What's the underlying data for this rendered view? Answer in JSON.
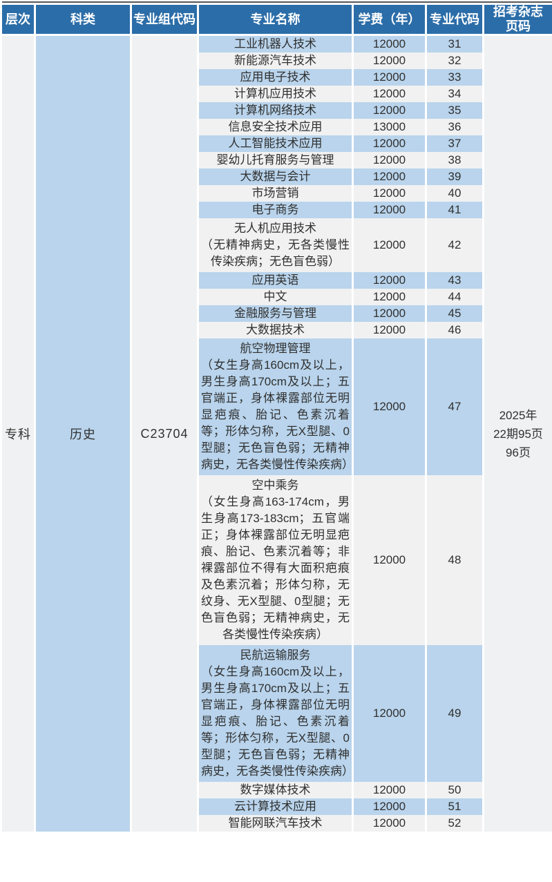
{
  "table": {
    "headers": [
      "层次",
      "科类",
      "专业组代码",
      "专业名称",
      "学费（年）",
      "专业代码",
      "招考杂志\n页码"
    ],
    "merged": {
      "level": "专科",
      "category": "历史",
      "group_code": "C23704",
      "magazine_text": "2025年\n22期95页\n96页"
    },
    "rows": [
      {
        "name": "工业机器人技术",
        "note": "",
        "tuition": "12000",
        "code": "31"
      },
      {
        "name": "新能源汽车技术",
        "note": "",
        "tuition": "12000",
        "code": "32"
      },
      {
        "name": "应用电子技术",
        "note": "",
        "tuition": "12000",
        "code": "33"
      },
      {
        "name": "计算机应用技术",
        "note": "",
        "tuition": "12000",
        "code": "34"
      },
      {
        "name": "计算机网络技术",
        "note": "",
        "tuition": "12000",
        "code": "35"
      },
      {
        "name": "信息安全技术应用",
        "note": "",
        "tuition": "13000",
        "code": "36"
      },
      {
        "name": "人工智能技术应用",
        "note": "",
        "tuition": "12000",
        "code": "37"
      },
      {
        "name": "婴幼儿托育服务与管理",
        "note": "",
        "tuition": "12000",
        "code": "38"
      },
      {
        "name": "大数据与会计",
        "note": "",
        "tuition": "12000",
        "code": "39"
      },
      {
        "name": "市场营销",
        "note": "",
        "tuition": "12000",
        "code": "40"
      },
      {
        "name": "电子商务",
        "note": "",
        "tuition": "12000",
        "code": "41"
      },
      {
        "name": "无人机应用技术",
        "note": "（无精神病史，无各类慢性传染疾病；无色盲色弱）",
        "tuition": "12000",
        "code": "42"
      },
      {
        "name": "应用英语",
        "note": "",
        "tuition": "12000",
        "code": "43"
      },
      {
        "name": "中文",
        "note": "",
        "tuition": "12000",
        "code": "44"
      },
      {
        "name": "金融服务与管理",
        "note": "",
        "tuition": "12000",
        "code": "45"
      },
      {
        "name": "大数据技术",
        "note": "",
        "tuition": "12000",
        "code": "46"
      },
      {
        "name": "航空物理管理",
        "note": "（女生身高160cm及以上，男生身高170cm及以上；五官端正，身体裸露部位无明显疤痕、胎记、色素沉着等；形体匀称，无X型腿、0型腿；无色盲色弱；无精神病史，无各类慢性传染疾病）",
        "tuition": "12000",
        "code": "47"
      },
      {
        "name": "空中乘务",
        "note": "（女生身高163-174cm，男生身高173-183cm；五官端正；身体裸露部位无明显疤痕、胎记、色素沉着等；非裸露部位不得有大面积疤痕及色素沉着；形体匀称，无纹身、无X型腿、0型腿；无色盲色弱；无精神病史，无各类慢性传染疾病）",
        "tuition": "12000",
        "code": "48"
      },
      {
        "name": "民航运输服务",
        "note": "（女生身高160cm及以上，男生身高170cm及以上；五官端正，身体裸露部位无明显疤痕、胎记、色素沉着等；形体匀称，无X型腿、0型腿；无色盲色弱；无精神病史，无各类慢性传染疾病）",
        "tuition": "12000",
        "code": "49"
      },
      {
        "name": "数字媒体技术",
        "note": "",
        "tuition": "12000",
        "code": "50"
      },
      {
        "name": "云计算技术应用",
        "note": "",
        "tuition": "12000",
        "code": "51"
      },
      {
        "name": "智能网联汽车技术",
        "note": "",
        "tuition": "12000",
        "code": "52"
      }
    ]
  },
  "colors": {
    "header_bg": "#2b6da8",
    "row_blue": "#b9d4ec",
    "row_gray": "#f1f1f2",
    "side_column_bg": "#f0f1f2",
    "header_text": "#ffffff",
    "body_text": "#303030",
    "top_line": "#555555"
  }
}
